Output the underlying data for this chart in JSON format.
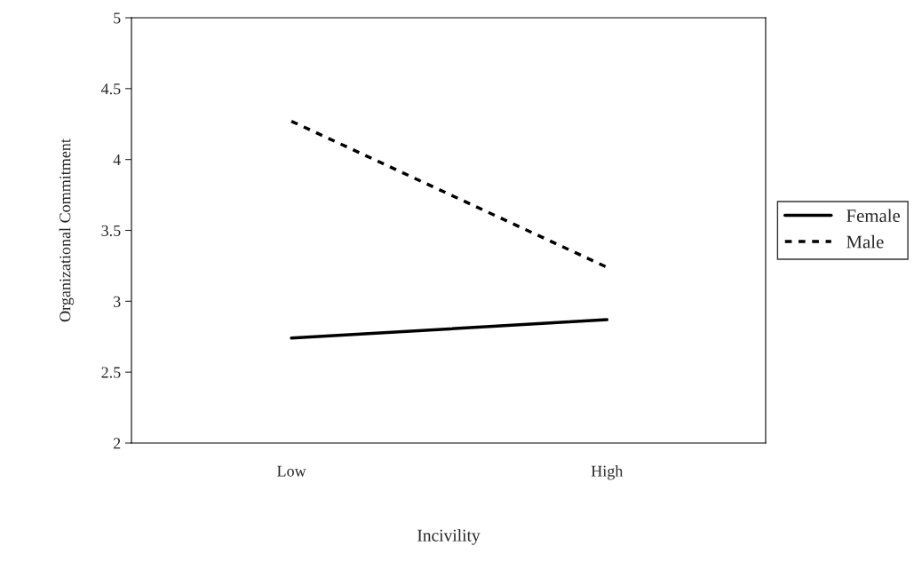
{
  "chart_data": {
    "type": "line",
    "xlabel": "Incivility",
    "ylabel": "Organizational Commitment",
    "categories": [
      "Low",
      "High"
    ],
    "series": [
      {
        "name": "Female",
        "color": "#000000",
        "values": [
          2.74,
          2.87
        ],
        "line_style": "solid"
      },
      {
        "name": "Male",
        "color": "#000000",
        "values": [
          4.27,
          3.24
        ],
        "line_style": "dashed"
      }
    ],
    "ylim": [
      2,
      5
    ],
    "yticks": [
      2,
      2.5,
      3,
      3.5,
      4,
      4.5,
      5
    ],
    "grid": false,
    "legend": "right",
    "marker": "none"
  }
}
